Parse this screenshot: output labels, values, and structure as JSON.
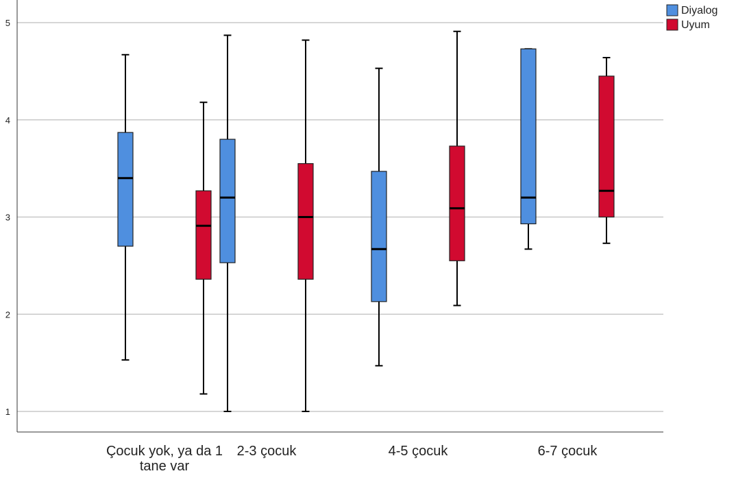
{
  "chart_data": {
    "type": "boxplot",
    "xlabel": "",
    "ylabel": "",
    "ylim": [
      0.78,
      5.2
    ],
    "yticks": [
      1,
      2,
      3,
      4,
      5
    ],
    "grid": "horizontal",
    "legend_position": "top-right",
    "categories": [
      [
        "Çocuk yok, ya da 1",
        "tane var"
      ],
      [
        "2-3 çocuk"
      ],
      [
        "4-5 çocuk"
      ],
      [
        "6-7 çocuk"
      ]
    ],
    "series": [
      {
        "name": "Diyalog",
        "color": "#4f8fdf",
        "boxes": [
          {
            "min": 1.53,
            "q1": 2.7,
            "median": 3.4,
            "q3": 3.87,
            "max": 4.67
          },
          {
            "min": 1.0,
            "q1": 2.53,
            "median": 3.2,
            "q3": 3.8,
            "max": 4.87
          },
          {
            "min": 1.47,
            "q1": 2.13,
            "median": 2.67,
            "q3": 3.47,
            "max": 4.53
          },
          {
            "min": 2.67,
            "q1": 2.93,
            "median": 3.2,
            "q3": 4.73,
            "max": 4.73
          }
        ]
      },
      {
        "name": "Uyum",
        "color": "#d10a30",
        "boxes": [
          {
            "min": 1.18,
            "q1": 2.36,
            "median": 2.91,
            "q3": 3.27,
            "max": 4.18
          },
          {
            "min": 1.0,
            "q1": 2.36,
            "median": 3.0,
            "q3": 3.55,
            "max": 4.82
          },
          {
            "min": 2.09,
            "q1": 2.55,
            "median": 3.09,
            "q3": 3.73,
            "max": 4.91
          },
          {
            "min": 2.73,
            "q1": 3.0,
            "median": 3.27,
            "q3": 4.45,
            "max": 4.64
          }
        ]
      }
    ]
  }
}
